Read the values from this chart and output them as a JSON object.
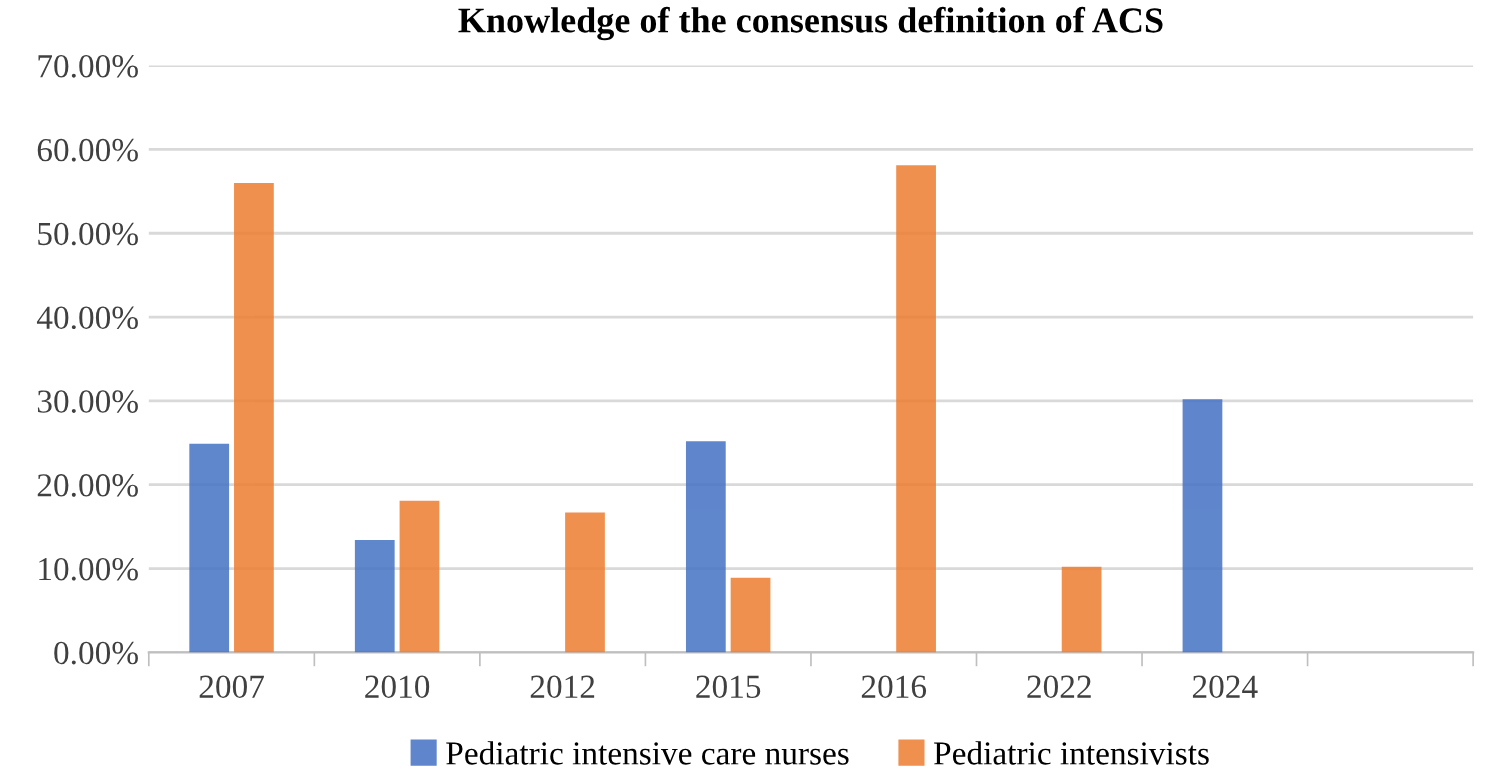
{
  "chart_data": {
    "type": "bar",
    "title": "Knowledge of the consensus definition of ACS",
    "categories": [
      "2007",
      "2010",
      "2012",
      "2015",
      "2016",
      "2022",
      "2024",
      null
    ],
    "series": [
      {
        "name": "Pediatric intensive care nurses",
        "color": "#4472c4",
        "values": [
          24.7,
          13.2,
          null,
          25.0,
          null,
          null,
          30.0,
          null
        ]
      },
      {
        "name": "Pediatric intensivists",
        "color": "#ed7d31",
        "values": [
          55.8,
          17.9,
          16.5,
          8.7,
          57.9,
          10.0,
          null,
          null
        ]
      }
    ],
    "ylim": [
      0,
      70
    ],
    "yticks": [
      {
        "value": 0,
        "label": "0.00%"
      },
      {
        "value": 10,
        "label": "10.00%"
      },
      {
        "value": 20,
        "label": "20.00%"
      },
      {
        "value": 30,
        "label": "30.00%"
      },
      {
        "value": 40,
        "label": "40.00%"
      },
      {
        "value": 50,
        "label": "50.00%"
      },
      {
        "value": 60,
        "label": "60.00%"
      },
      {
        "value": 70,
        "label": "70.00%"
      }
    ],
    "grid": "y",
    "legend": "bottom"
  }
}
